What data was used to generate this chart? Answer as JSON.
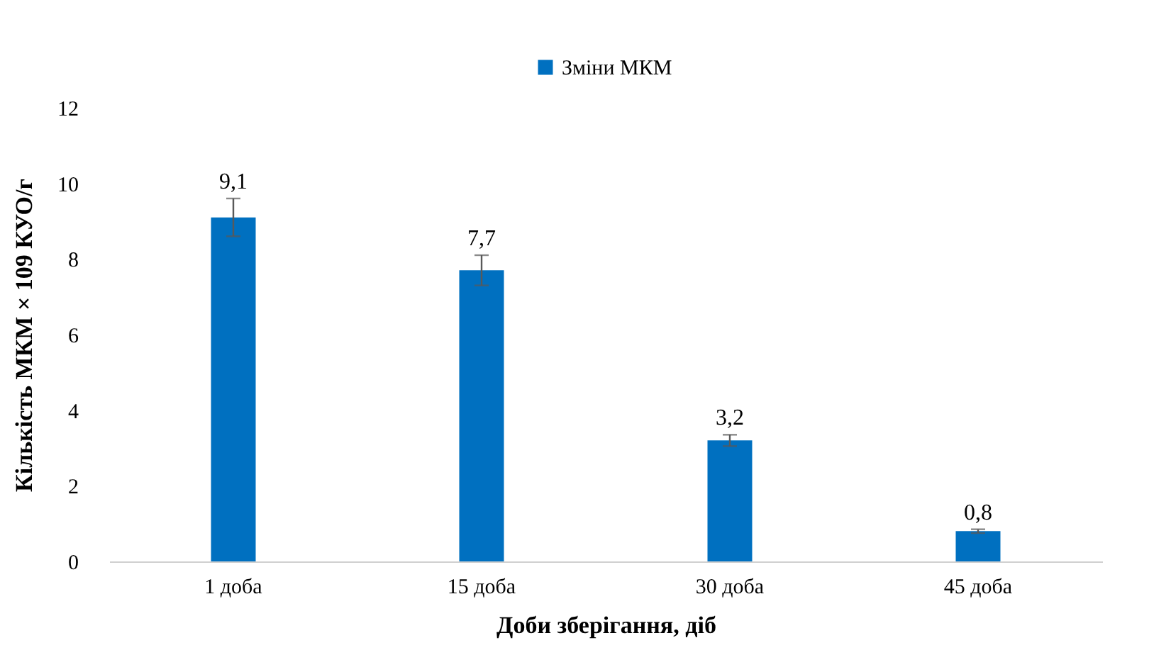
{
  "chart_data": {
    "type": "bar",
    "xlabel": "Доби зберігання, діб",
    "ylabel": "Кількість МКМ × 109 КУО/г",
    "categories": [
      "1 доба",
      "15 доба",
      "30 доба",
      "45 доба"
    ],
    "series": [
      {
        "name": "Зміни МКМ",
        "color": "#0070c0",
        "values": [
          9.1,
          7.7,
          3.2,
          0.8
        ],
        "errors": [
          0.5,
          0.4,
          0.15,
          0.05
        ],
        "value_labels": [
          "9,1",
          "7,7",
          "3,2",
          "0,8"
        ]
      }
    ],
    "ylim": [
      0,
      12
    ],
    "yticks": [
      0,
      2,
      4,
      6,
      8,
      10,
      12
    ],
    "grid": false,
    "legend": "top"
  }
}
